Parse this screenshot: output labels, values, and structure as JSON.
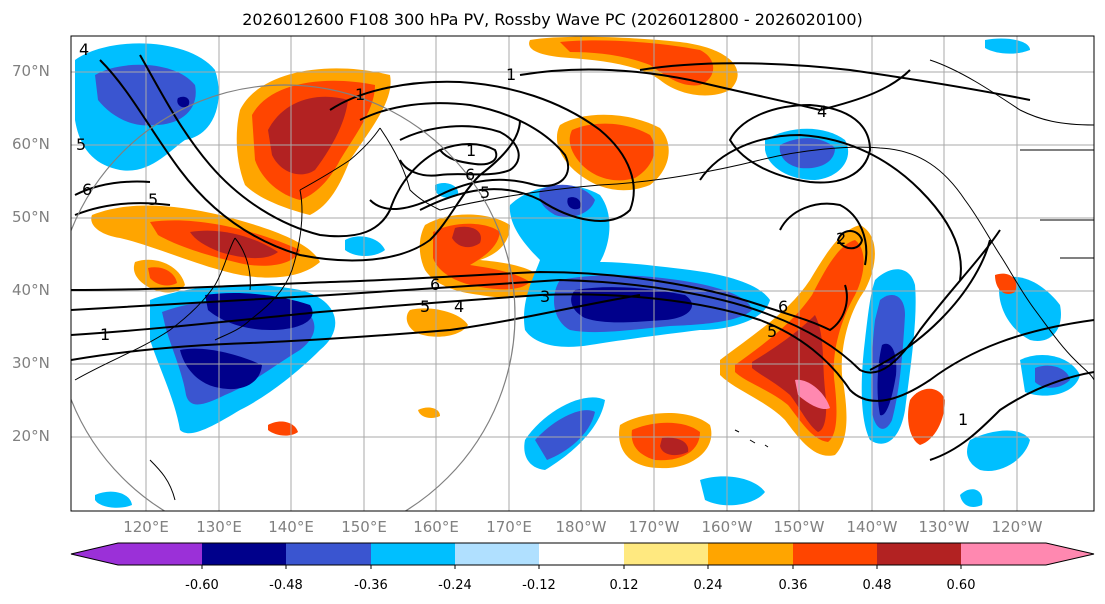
{
  "title": "2026012600 F108 300 hPa PV, Rossby Wave PC (2026012800 - 2026020100)",
  "lat_labels": [
    "70°N",
    "60°N",
    "50°N",
    "40°N",
    "30°N",
    "20°N"
  ],
  "lon_labels": [
    "120°E",
    "130°E",
    "140°E",
    "150°E",
    "160°E",
    "170°E",
    "180°W",
    "170°W",
    "160°W",
    "150°W",
    "140°W",
    "130°W",
    "120°W"
  ],
  "colorbar": {
    "ticks": [
      "-0.60",
      "-0.48",
      "-0.36",
      "-0.24",
      "-0.12",
      "0.12",
      "0.24",
      "0.36",
      "0.48",
      "0.60"
    ],
    "colors": [
      "#9b30d8",
      "#00008b",
      "#3a55d0",
      "#00bfff",
      "#b0e0ff",
      "#ffffff",
      "#ffe980",
      "#ffa500",
      "#ff4500",
      "#b22222",
      "#ff88b0"
    ]
  },
  "contour_labels": [
    "1",
    "4",
    "5",
    "6",
    "3",
    "4",
    "5",
    "6",
    "5",
    "6",
    "1",
    "1",
    "4",
    "5",
    "6",
    "1",
    "2",
    "1",
    "5"
  ],
  "map_extent": {
    "lon_min": 112,
    "lon_max": 253,
    "lat_min": 10,
    "lat_max": 75
  }
}
